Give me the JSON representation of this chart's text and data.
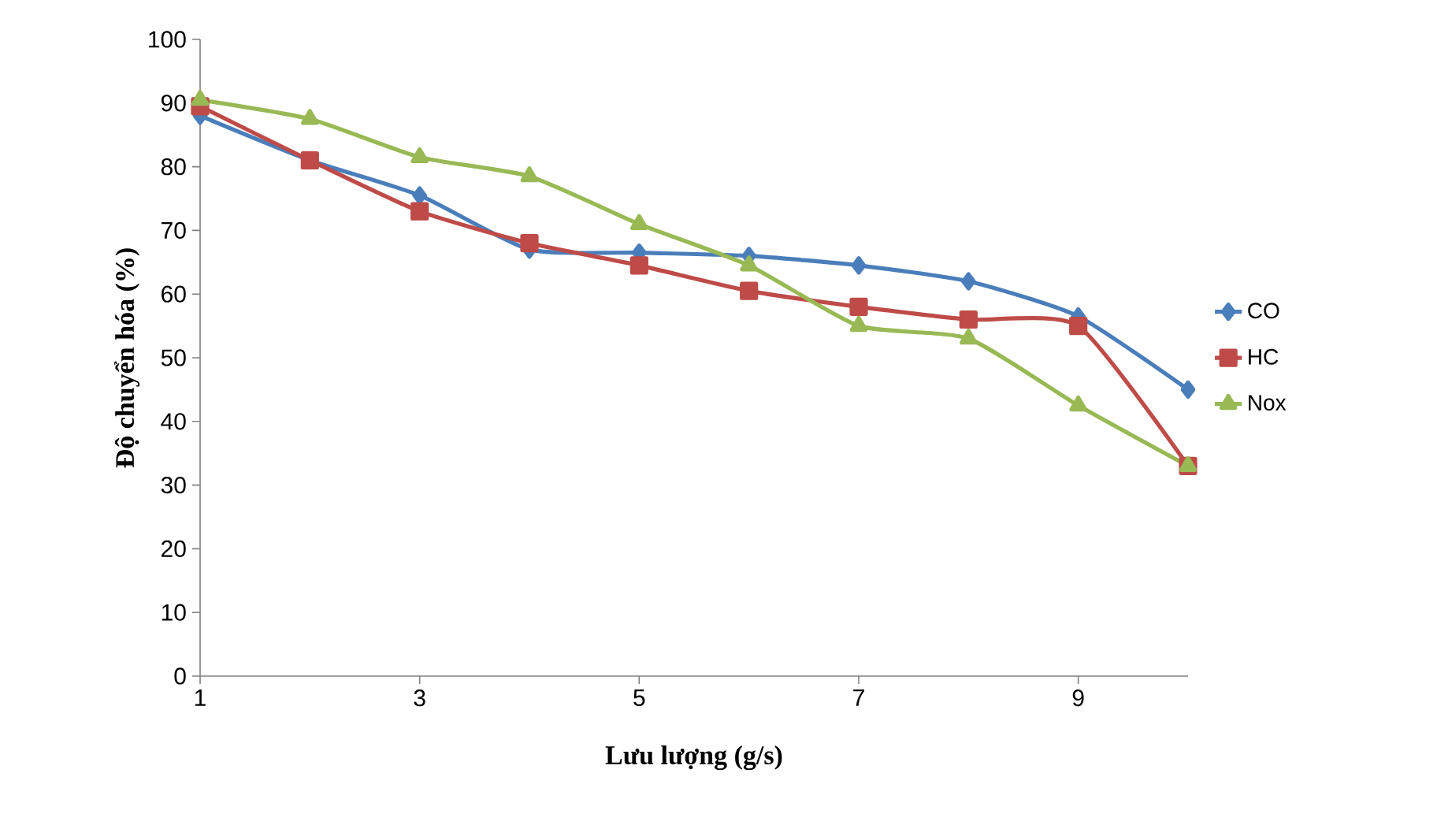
{
  "chart_data": {
    "type": "line",
    "xlabel": "Lưu lượng (g/s)",
    "ylabel": "Độ chuyển hóa (%)",
    "x": [
      1,
      2,
      3,
      4,
      5,
      6,
      7,
      8,
      9,
      10
    ],
    "xlim": [
      1,
      10
    ],
    "xticks": [
      1,
      3,
      5,
      7,
      9
    ],
    "ylim": [
      0,
      100
    ],
    "yticks": [
      0,
      10,
      20,
      30,
      40,
      50,
      60,
      70,
      80,
      90,
      100
    ],
    "grid": false,
    "legend": "right",
    "series": [
      {
        "name": "CO",
        "color": "#4a7ebb",
        "marker": "diamond",
        "values": [
          88,
          81,
          75.5,
          67,
          66.5,
          66,
          64.5,
          62,
          56.5,
          45
        ]
      },
      {
        "name": "HC",
        "color": "#be4b48",
        "marker": "square",
        "values": [
          89.5,
          81,
          73,
          68,
          64.5,
          60.5,
          58,
          56,
          55,
          33
        ]
      },
      {
        "name": "Nox",
        "color": "#98b954",
        "marker": "triangle",
        "values": [
          90.5,
          87.5,
          81.5,
          78.5,
          71,
          64.5,
          55,
          53,
          42.5,
          33
        ]
      }
    ]
  }
}
